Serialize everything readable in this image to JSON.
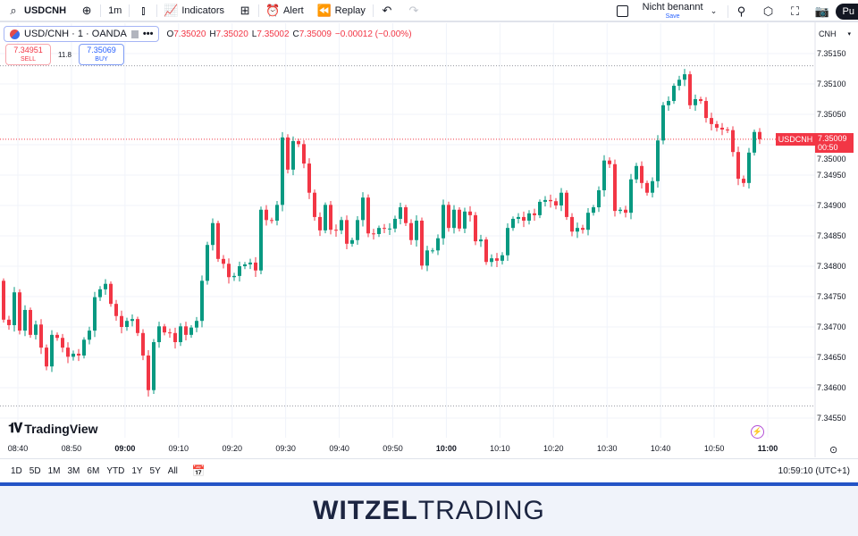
{
  "toolbar": {
    "symbol": "USDCNH",
    "interval": "1m",
    "indicators_label": "Indicators",
    "alert_label": "Alert",
    "replay_label": "Replay",
    "layout_name": "Nicht benannt",
    "save_label": "Save",
    "publish_label": "Pu"
  },
  "legend": {
    "title": "USD/CNH · 1 · OANDA",
    "o_label": "O",
    "o": "7.35020",
    "h_label": "H",
    "h": "7.35020",
    "l_label": "L",
    "l": "7.35002",
    "c_label": "C",
    "c": "7.35009",
    "change": "−0.00012 (−0.00%)"
  },
  "trade": {
    "sell_price": "7.34951",
    "sell_label": "SELL",
    "spread": "11.8",
    "buy_price": "7.35069",
    "buy_label": "BUY"
  },
  "currency": "CNH",
  "current": {
    "symbol": "USDCNH",
    "price": "7.35009",
    "countdown": "00:50"
  },
  "brand": "TradingView",
  "ranges": [
    "1D",
    "5D",
    "1M",
    "3M",
    "6M",
    "YTD",
    "1Y",
    "5Y",
    "All"
  ],
  "clock": "10:59:10 (UTC+1)",
  "footer": {
    "logo_bold": "WITZEL",
    "logo_light": "TRADING"
  },
  "colors": {
    "up": "#089981",
    "down": "#f23645",
    "accent": "#2962ff"
  },
  "chart_data": {
    "type": "candlestick",
    "interval": "1m",
    "price_ticks": [
      "7.35150",
      "7.35100",
      "7.35050",
      "7.35000",
      "7.34950",
      "7.34900",
      "7.34850",
      "7.34800",
      "7.34750",
      "7.34700",
      "7.34650",
      "7.34600",
      "7.34550"
    ],
    "ylim": [
      7.3455,
      7.3515
    ],
    "time_ticks": [
      {
        "label": "08:40",
        "bold": false
      },
      {
        "label": "08:50",
        "bold": false
      },
      {
        "label": "09:00",
        "bold": true
      },
      {
        "label": "09:10",
        "bold": false
      },
      {
        "label": "09:20",
        "bold": false
      },
      {
        "label": "09:30",
        "bold": false
      },
      {
        "label": "09:40",
        "bold": false
      },
      {
        "label": "09:50",
        "bold": false
      },
      {
        "label": "10:00",
        "bold": true
      },
      {
        "label": "10:10",
        "bold": false
      },
      {
        "label": "10:20",
        "bold": false
      },
      {
        "label": "10:30",
        "bold": false
      },
      {
        "label": "10:40",
        "bold": false
      },
      {
        "label": "10:50",
        "bold": false
      },
      {
        "label": "11:00",
        "bold": true
      }
    ],
    "first_open": 7.34776,
    "closes": [
      7.34712,
      7.34703,
      7.34757,
      7.34694,
      7.34728,
      7.34687,
      7.34704,
      7.34666,
      7.34635,
      7.34687,
      7.34682,
      7.34666,
      7.34651,
      7.34656,
      7.34653,
      7.34679,
      7.34694,
      7.34749,
      7.34762,
      7.34771,
      7.34738,
      7.34718,
      7.347,
      7.3471,
      7.34713,
      7.3469,
      7.34653,
      7.34596,
      7.34675,
      7.34701,
      7.34691,
      7.3469,
      7.34675,
      7.34701,
      7.34687,
      7.34699,
      7.3471,
      7.34776,
      7.34835,
      7.34871,
      7.34812,
      7.34804,
      7.34782,
      7.34784,
      7.348,
      7.34803,
      7.34806,
      7.34793,
      7.34893,
      7.34876,
      7.34875,
      7.34901,
      7.35012,
      7.34959,
      7.35006,
      7.35001,
      7.34969,
      7.34921,
      7.34881,
      7.34859,
      7.34901,
      7.3486,
      7.34859,
      7.34876,
      7.34837,
      7.34843,
      7.34876,
      7.34913,
      7.34854,
      7.34853,
      7.34863,
      7.34862,
      7.34862,
      7.34878,
      7.34897,
      7.34871,
      7.34843,
      7.34875,
      7.34801,
      7.34826,
      7.34826,
      7.34846,
      7.34901,
      7.34863,
      7.34893,
      7.34862,
      7.3489,
      7.34884,
      7.34841,
      7.34844,
      7.34807,
      7.34813,
      7.34809,
      7.34818,
      7.34863,
      7.34878,
      7.34881,
      7.34875,
      7.34887,
      7.34884,
      7.34906,
      7.34909,
      7.34907,
      7.349,
      7.34921,
      7.34881,
      7.34857,
      7.34863,
      7.3486,
      7.34888,
      7.34897,
      7.34925,
      7.34974,
      7.34968,
      7.34891,
      7.34893,
      7.34888,
      7.34943,
      7.34965,
      7.34937,
      7.34921,
      7.3494,
      7.35007,
      7.35065,
      7.35072,
      7.35097,
      7.35107,
      7.35116,
      7.35065,
      7.35075,
      7.35072,
      7.35044,
      7.35034,
      7.35028,
      7.35025,
      7.35024,
      7.34988,
      7.34944,
      7.34937,
      7.34987,
      7.35021,
      7.35009
    ],
    "session_high": 7.3513,
    "session_low": 7.3457,
    "last_price": 7.35009
  }
}
